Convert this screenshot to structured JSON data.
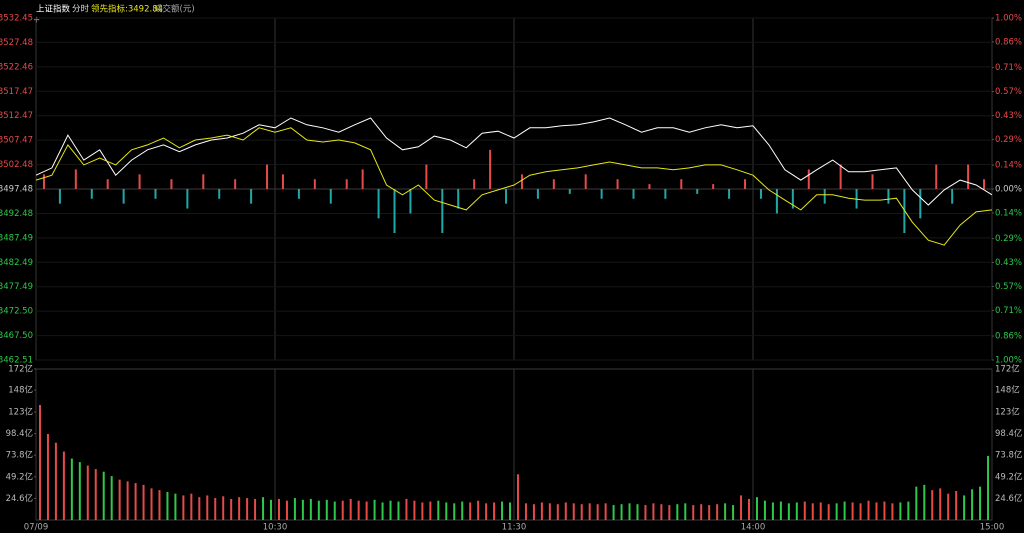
{
  "chart_data": [
    {
      "type": "line",
      "header": {
        "title": "上证指数",
        "mode": "分时",
        "volume_label": "成交额(元)"
      },
      "x": [
        0,
        4,
        8,
        12,
        16,
        20,
        24,
        28,
        32,
        36,
        40,
        44,
        48,
        52,
        56,
        60,
        64,
        68,
        72,
        76,
        80,
        84,
        88,
        92,
        96,
        100,
        104,
        108,
        112,
        116,
        120,
        124,
        128,
        132,
        136,
        140,
        144,
        148,
        152,
        156,
        160,
        164,
        168,
        172,
        176,
        180,
        184,
        188,
        192,
        196,
        200,
        204,
        208,
        212,
        216,
        220,
        224,
        228,
        232,
        236,
        240
      ],
      "xlim": [
        0,
        240
      ],
      "xticks": [
        {
          "value": 0,
          "label": "07/09"
        },
        {
          "value": 60,
          "label": "10:30"
        },
        {
          "value": 120,
          "label": "11:30"
        },
        {
          "value": 180,
          "label": "14:00"
        },
        {
          "value": 240,
          "label": "15:00"
        }
      ],
      "ylim": [
        3462.51,
        3532.45
      ],
      "yticks": [
        3532.45,
        3527.48,
        3522.46,
        3517.47,
        3512.47,
        3507.47,
        3502.48,
        3497.48,
        3492.48,
        3487.49,
        3482.49,
        3477.49,
        {
          "value": 3472.5,
          "label": "3472.50"
        },
        {
          "value": 3467.5,
          "label": "3467.50"
        },
        3462.51
      ],
      "y2lim": [
        -1,
        1
      ],
      "y2ticks": [
        {
          "value": 1,
          "label": "1.00%"
        },
        {
          "value": 0.86,
          "label": "0.86%"
        },
        {
          "value": 0.71,
          "label": "0.71%"
        },
        {
          "value": 0.57,
          "label": "0.57%"
        },
        {
          "value": 0.43,
          "label": "0.43%"
        },
        {
          "value": 0.29,
          "label": "0.29%"
        },
        {
          "value": 0.14,
          "label": "0.14%"
        },
        {
          "value": 0,
          "label": "0.00%"
        },
        {
          "value": -0.14,
          "label": "0.14%"
        },
        {
          "value": -0.29,
          "label": "0.29%"
        },
        {
          "value": -0.43,
          "label": "0.43%"
        },
        {
          "value": -0.57,
          "label": "0.57%"
        },
        {
          "value": -0.71,
          "label": "0.71%"
        },
        {
          "value": -0.86,
          "label": "0.86%"
        },
        {
          "value": -1,
          "label": "1.00%"
        }
      ],
      "series": [
        {
          "name": "上证指数",
          "color": "#ffffff",
          "values": [
            3500.3,
            3501.8,
            3508.5,
            3503.4,
            3505.5,
            3500.3,
            3503.4,
            3505.5,
            3506.5,
            3505.1,
            3506.5,
            3507.5,
            3507.9,
            3508.9,
            3510.6,
            3510.0,
            3512.0,
            3510.6,
            3510.0,
            3509.1,
            3510.6,
            3512.0,
            3507.9,
            3505.5,
            3506.1,
            3508.3,
            3507.5,
            3505.9,
            3508.9,
            3509.3,
            3507.9,
            3510.0,
            3510.0,
            3510.4,
            3510.6,
            3511.2,
            3512.0,
            3510.6,
            3509.1,
            3510.0,
            3510.0,
            3509.1,
            3510.0,
            3510.6,
            3510.0,
            3510.4,
            3506.5,
            3501.4,
            3499.3,
            3501.4,
            3503.4,
            3501.0,
            3501.0,
            3501.4,
            3501.8,
            3497.3,
            3494.2,
            3497.3,
            3499.3,
            3498.3,
            3496.3
          ]
        },
        {
          "name": "领先指标:3492.84",
          "color": "#e6e619",
          "values": [
            3499.3,
            3500.3,
            3506.5,
            3502.4,
            3503.8,
            3502.4,
            3505.5,
            3506.5,
            3507.9,
            3505.9,
            3507.5,
            3507.9,
            3508.5,
            3507.5,
            3510.0,
            3509.1,
            3510.0,
            3507.5,
            3507.1,
            3507.5,
            3506.9,
            3505.5,
            3498.3,
            3496.3,
            3498.3,
            3495.2,
            3494.2,
            3493.2,
            3496.3,
            3497.3,
            3498.3,
            3500.3,
            3501.0,
            3501.4,
            3501.8,
            3502.4,
            3503.0,
            3502.4,
            3501.8,
            3501.8,
            3501.4,
            3501.8,
            3502.4,
            3502.4,
            3501.4,
            3500.3,
            3497.3,
            3495.2,
            3493.2,
            3496.3,
            3496.3,
            3495.6,
            3495.2,
            3495.2,
            3495.6,
            3490.7,
            3487.0,
            3486.0,
            3490.1,
            3492.8,
            3493.2
          ]
        }
      ],
      "bars": {
        "x": [
          2,
          6,
          10,
          14,
          18,
          22,
          26,
          30,
          34,
          38,
          42,
          46,
          50,
          54,
          58,
          62,
          66,
          70,
          74,
          78,
          82,
          86,
          90,
          94,
          98,
          102,
          106,
          110,
          114,
          118,
          122,
          126,
          130,
          134,
          138,
          142,
          146,
          150,
          154,
          158,
          162,
          166,
          170,
          174,
          178,
          182,
          186,
          190,
          194,
          198,
          202,
          206,
          210,
          214,
          218,
          222,
          226,
          230,
          234,
          238
        ],
        "values": [
          3,
          -3,
          4,
          -2,
          2,
          -3,
          3,
          -2,
          2,
          -4,
          3,
          -2,
          2,
          -3,
          5,
          3,
          -2,
          2,
          -3,
          2,
          4,
          -6,
          -9,
          -5,
          5,
          -9,
          -4,
          2,
          8,
          -3,
          3,
          -2,
          2,
          -1,
          3,
          -2,
          2,
          -2,
          1,
          -2,
          2,
          -1,
          1,
          -2,
          2,
          -2,
          -5,
          -4,
          4,
          -3,
          5,
          -4,
          3,
          -3,
          -9,
          -6,
          5,
          -3,
          5,
          2
        ]
      },
      "up_color": "#e84a4a",
      "down_color": "#1fa8a8",
      "grid": true
    },
    {
      "type": "bar",
      "x": [
        1,
        3,
        5,
        7,
        9,
        11,
        13,
        15,
        17,
        19,
        21,
        23,
        25,
        27,
        29,
        31,
        33,
        35,
        37,
        39,
        41,
        43,
        45,
        47,
        49,
        51,
        53,
        55,
        57,
        59,
        61,
        63,
        65,
        67,
        69,
        71,
        73,
        75,
        77,
        79,
        81,
        83,
        85,
        87,
        89,
        91,
        93,
        95,
        97,
        99,
        101,
        103,
        105,
        107,
        109,
        111,
        113,
        115,
        117,
        119,
        121,
        123,
        125,
        127,
        129,
        131,
        133,
        135,
        137,
        139,
        141,
        143,
        145,
        147,
        149,
        151,
        153,
        155,
        157,
        159,
        161,
        163,
        165,
        167,
        169,
        171,
        173,
        175,
        177,
        179,
        181,
        183,
        185,
        187,
        189,
        191,
        193,
        195,
        197,
        199,
        201,
        203,
        205,
        207,
        209,
        211,
        213,
        215,
        217,
        219,
        221,
        223,
        225,
        227,
        229,
        231,
        233,
        235,
        237,
        239
      ],
      "values": [
        131,
        98,
        88,
        78,
        70,
        66,
        62,
        58,
        55,
        50,
        46,
        44,
        42,
        40,
        36,
        34,
        32,
        30,
        28,
        30,
        26,
        28,
        25,
        27,
        24,
        26,
        25,
        24,
        26,
        23,
        24,
        22,
        25,
        23,
        24,
        22,
        23,
        21,
        22,
        24,
        22,
        21,
        23,
        20,
        22,
        21,
        24,
        22,
        20,
        21,
        22,
        20,
        19,
        21,
        20,
        22,
        19,
        20,
        21,
        20,
        52,
        19,
        18,
        20,
        19,
        18,
        20,
        19,
        18,
        19,
        18,
        19,
        17,
        18,
        19,
        18,
        17,
        19,
        18,
        17,
        18,
        19,
        17,
        18,
        17,
        18,
        19,
        17,
        28,
        24,
        26,
        22,
        20,
        21,
        19,
        20,
        21,
        19,
        20,
        18,
        19,
        21,
        20,
        19,
        22,
        20,
        21,
        19,
        20,
        21,
        38,
        40,
        34,
        36,
        30,
        33,
        28,
        35,
        38,
        73
      ],
      "ylim": [
        0,
        172
      ],
      "yticks": [
        {
          "value": 172,
          "label": "172亿"
        },
        {
          "value": 148,
          "label": "148亿"
        },
        {
          "value": 123,
          "label": "123亿"
        },
        {
          "value": 98.4,
          "label": "98.4亿"
        },
        {
          "value": 73.8,
          "label": "73.8亿"
        },
        {
          "value": 49.2,
          "label": "49.2亿"
        },
        {
          "value": 24.6,
          "label": "24.6亿"
        }
      ],
      "up_color": "#e84a4a",
      "down_color": "#2ec84a"
    }
  ]
}
